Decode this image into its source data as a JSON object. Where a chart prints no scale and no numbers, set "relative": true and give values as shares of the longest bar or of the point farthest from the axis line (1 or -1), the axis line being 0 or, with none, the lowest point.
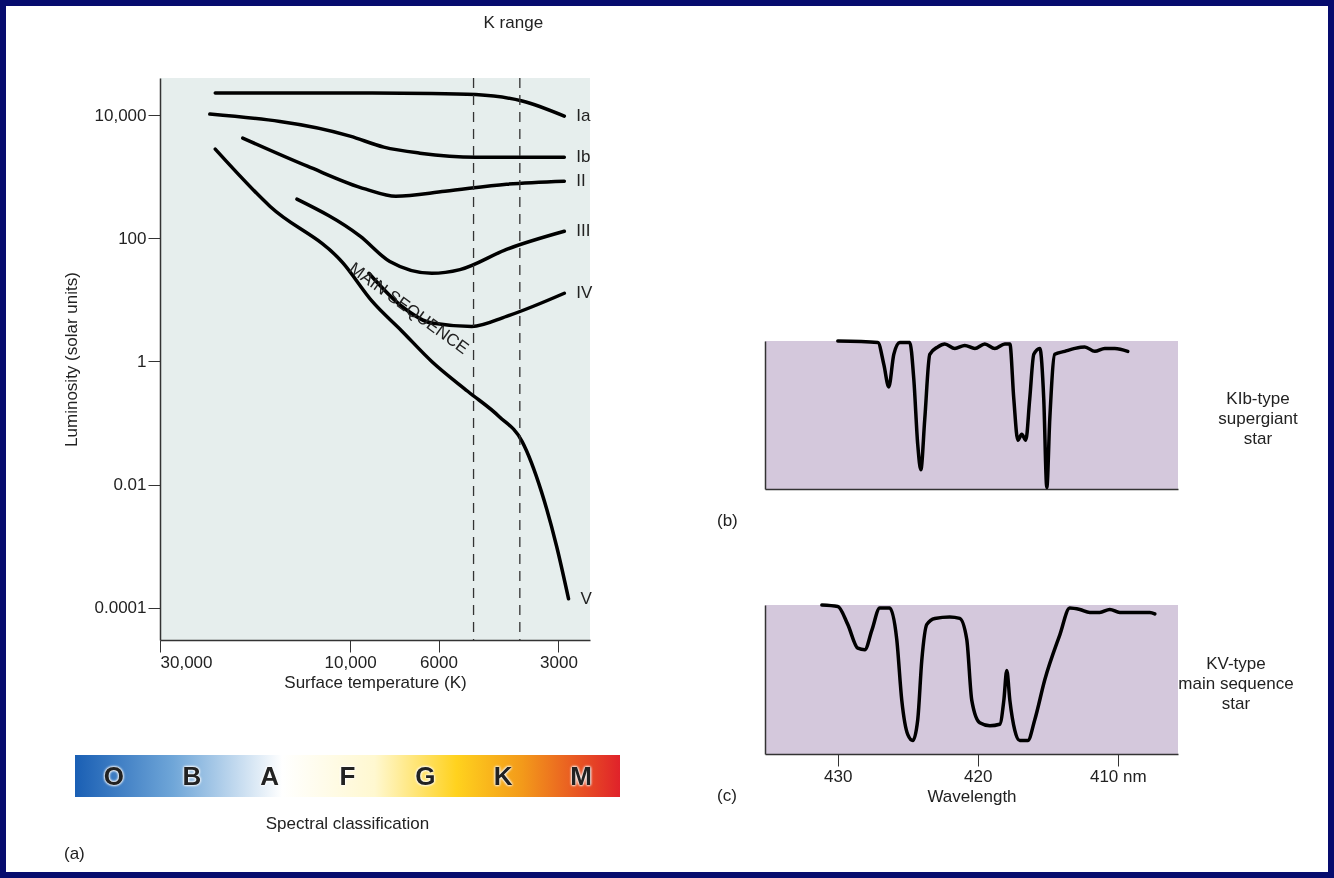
{
  "chart_data": [
    {
      "type": "line",
      "xlabel": "Surface temperature (K)",
      "ylabel": "Luminosity (solar units)",
      "log": "xy",
      "xlim": [
        30000,
        2500
      ],
      "ylim": [
        3e-05,
        40000
      ],
      "xticks": [
        {
          "value": 30000,
          "label": "30,000"
        },
        {
          "value": 10000,
          "label": "10,000"
        },
        6000,
        3000
      ],
      "yticks": [
        {
          "value": 10000,
          "label": "10,000"
        },
        100,
        1,
        0.01,
        0.0001
      ],
      "grid": false,
      "line_style": "solid",
      "marker": "none",
      "ref_lines": [
        {
          "axis": "x",
          "value": 4900,
          "label": "K range",
          "line_style": "dashed"
        },
        {
          "axis": "x",
          "value": 3750,
          "line_style": "dashed"
        }
      ],
      "annotations": [
        "O",
        "B",
        "A",
        "F",
        "G",
        "K",
        "M",
        "Spectral classification",
        "(a)",
        {
          "text": "MAIN SEQUENCE",
          "x": 7400,
          "y": 3.1
        }
      ],
      "series": [
        {
          "name": "Ia",
          "color": "#000000",
          "x": [
            21800,
            8800,
            6240,
            4840,
            3700,
            2900
          ],
          "values": [
            22800,
            22800,
            22500,
            21500,
            16900,
            9600
          ]
        },
        {
          "name": "Ib",
          "color": "#000000",
          "x": [
            22500,
            10000,
            8230,
            6680,
            4840,
            2900
          ],
          "values": [
            10400,
            4560,
            3020,
            2410,
            2070,
            2070
          ]
        },
        {
          "name": "II",
          "color": "#000000",
          "x": [
            18600,
            12800,
            9130,
            7680,
            5780,
            4050,
            2900
          ],
          "values": [
            4230,
            1480,
            627,
            482,
            580,
            755,
            845
          ]
        },
        {
          "name": "III",
          "color": "#000000",
          "x": [
            13600,
            9440,
            7950,
            6240,
            5300,
            4050,
            2900
          ],
          "values": [
            431,
            108,
            42,
            27,
            31,
            66,
            130
          ]
        },
        {
          "name": "IV",
          "color": "#000000",
          "x": [
            8970,
            7410,
            6240,
            4950,
            4050,
            2900
          ],
          "values": [
            27,
            7.8,
            4.2,
            3.7,
            5.4,
            12.8
          ]
        },
        {
          "name": "V",
          "color": "#000000",
          "x": [
            21800,
            15900,
            10400,
            8810,
            7410,
            6240,
            5060,
            4230,
            3700,
            3310,
            3030,
            2830
          ],
          "values": [
            2800,
            331,
            39,
            9.5,
            3.1,
            1.0,
            0.325,
            0.128,
            0.05,
            0.0077,
            0.00098,
            0.00014
          ]
        }
      ]
    },
    {
      "type": "line",
      "relative": true,
      "xlim": [
        435.2,
        405.7
      ],
      "tick_labels": false,
      "color": "#000000",
      "annotations": [
        "KIb-type\nsupergiant\nstar",
        "(b)"
      ],
      "x": [
        430.0,
        427.14,
        426.71,
        426.36,
        426.0,
        425.57,
        424.86,
        424.57,
        424.29,
        424.07,
        423.79,
        423.43,
        422.86,
        422.36,
        421.64,
        420.93,
        420.21,
        419.5,
        418.79,
        418.07,
        417.71,
        417.43,
        417.14,
        416.86,
        416.57,
        416.29,
        416.0,
        415.57,
        415.29,
        415.07,
        414.86,
        414.5,
        413.79,
        413.07,
        412.36,
        411.64,
        410.93,
        410.21,
        409.29
      ],
      "values": [
        1.0,
        0.99,
        0.84,
        0.69,
        0.91,
        0.99,
        0.99,
        0.74,
        0.3,
        0.13,
        0.47,
        0.91,
        0.96,
        0.98,
        0.95,
        0.97,
        0.95,
        0.98,
        0.95,
        0.98,
        0.98,
        0.61,
        0.33,
        0.37,
        0.33,
        0.61,
        0.91,
        0.95,
        0.61,
        0.01,
        0.47,
        0.91,
        0.93,
        0.95,
        0.96,
        0.93,
        0.95,
        0.95,
        0.93
      ]
    },
    {
      "type": "line",
      "relative": true,
      "xlim": [
        435.2,
        405.7
      ],
      "xticks": [
        430,
        420,
        {
          "value": 410,
          "label": "410 nm"
        }
      ],
      "tick_labels": "x",
      "xlabel": "Wavelength",
      "color": "#000000",
      "annotations": [
        "KV-type\nmain sequence\nstar",
        "(c)"
      ],
      "x": [
        431.14,
        430,
        429.29,
        428.57,
        428.07,
        427.57,
        427.0,
        426.29,
        425.79,
        425.43,
        425.0,
        424.64,
        424.29,
        424.0,
        423.64,
        423.07,
        422.0,
        421.29,
        420.79,
        420.43,
        419.86,
        419.14,
        418.43,
        418.14,
        417.93,
        417.71,
        417.36,
        417.0,
        416.43,
        415.93,
        415.21,
        414.14,
        413.43,
        412.71,
        412.0,
        411.29,
        410.57,
        409.86,
        408.79,
        407.71,
        407.36
      ],
      "values": [
        1.0,
        0.99,
        0.87,
        0.71,
        0.7,
        0.83,
        0.98,
        0.98,
        0.77,
        0.36,
        0.13,
        0.09,
        0.23,
        0.63,
        0.87,
        0.91,
        0.92,
        0.91,
        0.77,
        0.36,
        0.21,
        0.19,
        0.2,
        0.36,
        0.56,
        0.36,
        0.16,
        0.09,
        0.09,
        0.23,
        0.5,
        0.8,
        0.98,
        0.97,
        0.95,
        0.95,
        0.97,
        0.95,
        0.95,
        0.95,
        0.94
      ]
    }
  ]
}
